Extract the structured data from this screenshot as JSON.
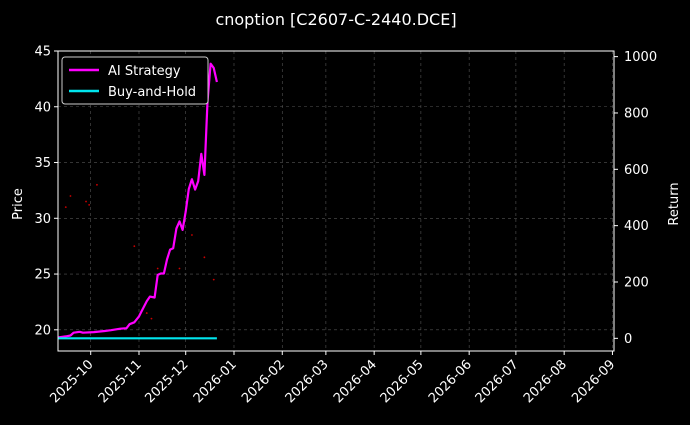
{
  "colors": {
    "background": "#000000",
    "axis": "#ffffff",
    "grid": "#555555",
    "strategy": "#ff00ff",
    "buyhold": "#00e5ee",
    "scatter": "#cc0000"
  },
  "chart_data": {
    "type": "line",
    "title": "cnoption [C2607-C-2440.DCE]",
    "ylabel_left": "Price",
    "ylabel_right": "Return",
    "ylim_left": [
      18.1,
      45
    ],
    "ylim_right": [
      -45,
      1020
    ],
    "yticks_left": [
      20,
      25,
      30,
      35,
      40,
      45
    ],
    "yticks_right": [
      0,
      200,
      400,
      600,
      800,
      1000
    ],
    "xlim": [
      "2025-09-10",
      "2026-09-02"
    ],
    "xticks": [
      "2025-10-01",
      "2025-11-01",
      "2025-12-01",
      "2026-01-01",
      "2026-02-01",
      "2026-03-01",
      "2026-04-01",
      "2026-05-01",
      "2026-06-01",
      "2026-07-01",
      "2026-08-01",
      "2026-09-01"
    ],
    "xtick_labels": [
      "2025-10",
      "2025-11",
      "2025-12",
      "2026-01",
      "2026-02",
      "2026-03",
      "2026-04",
      "2026-05",
      "2026-06",
      "2026-07",
      "2026-08",
      "2026-09"
    ],
    "grid": true,
    "legend": {
      "position": "top-left",
      "entries": [
        "AI Strategy",
        "Buy-and-Hold"
      ]
    },
    "series": [
      {
        "name": "AI Strategy",
        "axis": "right",
        "color": "#ff00ff",
        "points": [
          [
            "2025-09-10",
            3
          ],
          [
            "2025-09-15",
            7
          ],
          [
            "2025-09-18",
            10
          ],
          [
            "2025-09-20",
            20
          ],
          [
            "2025-09-24",
            23
          ],
          [
            "2025-09-26",
            20
          ],
          [
            "2025-10-03",
            22
          ],
          [
            "2025-10-10",
            26
          ],
          [
            "2025-10-14",
            29
          ],
          [
            "2025-10-20",
            34
          ],
          [
            "2025-10-24",
            36
          ],
          [
            "2025-10-26",
            50
          ],
          [
            "2025-10-29",
            57
          ],
          [
            "2025-11-01",
            78
          ],
          [
            "2025-11-03",
            100
          ],
          [
            "2025-11-06",
            132
          ],
          [
            "2025-11-08",
            148
          ],
          [
            "2025-11-11",
            145
          ],
          [
            "2025-11-13",
            225
          ],
          [
            "2025-11-15",
            230
          ],
          [
            "2025-11-17",
            230
          ],
          [
            "2025-11-19",
            280
          ],
          [
            "2025-11-21",
            315
          ],
          [
            "2025-11-23",
            320
          ],
          [
            "2025-11-25",
            390
          ],
          [
            "2025-11-27",
            415
          ],
          [
            "2025-11-29",
            385
          ],
          [
            "2025-12-01",
            450
          ],
          [
            "2025-12-03",
            530
          ],
          [
            "2025-12-05",
            565
          ],
          [
            "2025-12-07",
            528
          ],
          [
            "2025-12-09",
            558
          ],
          [
            "2025-12-11",
            655
          ],
          [
            "2025-12-13",
            580
          ],
          [
            "2025-12-15",
            840
          ],
          [
            "2025-12-17",
            975
          ],
          [
            "2025-12-19",
            960
          ],
          [
            "2025-12-21",
            910
          ]
        ]
      },
      {
        "name": "Buy-and-Hold",
        "axis": "right",
        "color": "#00e5ee",
        "points": [
          [
            "2025-09-10",
            0
          ],
          [
            "2025-12-21",
            0
          ]
        ]
      },
      {
        "name": "",
        "axis": "left",
        "type": "scatter",
        "color": "#cc0000",
        "points": [
          [
            "2025-09-15",
            31.0
          ],
          [
            "2025-09-18",
            32.0
          ],
          [
            "2025-09-28",
            31.5
          ],
          [
            "2025-09-30",
            31.2
          ],
          [
            "2025-10-05",
            33.0
          ],
          [
            "2025-10-29",
            27.5
          ],
          [
            "2025-11-06",
            21.5
          ],
          [
            "2025-11-09",
            21.0
          ],
          [
            "2025-11-13",
            25.5
          ],
          [
            "2025-11-27",
            25.5
          ],
          [
            "2025-12-05",
            28.5
          ],
          [
            "2025-12-13",
            26.5
          ],
          [
            "2025-12-19",
            24.5
          ]
        ]
      }
    ]
  }
}
